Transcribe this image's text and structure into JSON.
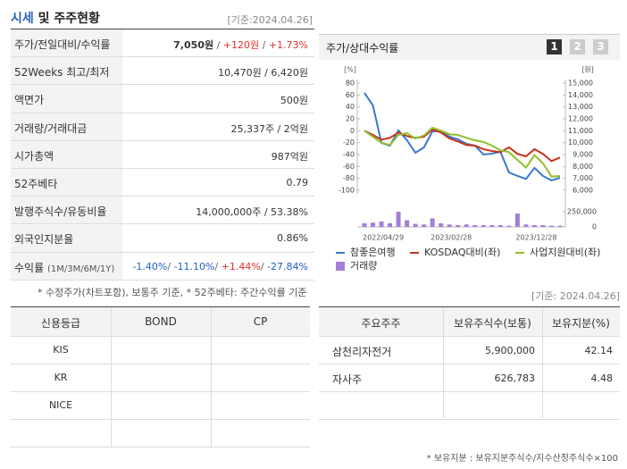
{
  "header": {
    "title_highlight": "시세",
    "title_rest": "및 주주현황",
    "date": "[기준:2024.04.26]"
  },
  "summary": {
    "rows": [
      {
        "label": "주가/전일대비/수익률",
        "value": [
          "7,050원",
          " / ",
          "+120원",
          " / ",
          "+1.73%"
        ]
      },
      {
        "label": "52Weeks 최고/최저",
        "value": [
          "10,470원 / 6,420원"
        ]
      },
      {
        "label": "액면가",
        "value": [
          "500원"
        ]
      },
      {
        "label": "거래량/거래대금",
        "value": [
          "25,337주 / 2억원"
        ]
      },
      {
        "label": "시가총액",
        "value": [
          "987억원"
        ]
      },
      {
        "label": "52주베타",
        "value": [
          "0.79"
        ]
      },
      {
        "label": "발행주식수/유동비율",
        "value": [
          "14,000,000주 / 53.38%"
        ]
      },
      {
        "label": "외국인지분율",
        "value": [
          "0.86%"
        ]
      },
      {
        "label": "수익률",
        "label_note": "(1M/3M/6M/1Y)",
        "value": [
          "-1.40%",
          "/ ",
          "-11.10%",
          "/ ",
          "+1.44%",
          "/ ",
          "-27.84%"
        ]
      }
    ],
    "footnote": "* 수정주가(차트포함), 보통주 기준, * 52주베타: 주간수익률 기준"
  },
  "chart_panel": {
    "tabs": [
      "1",
      "2",
      "3"
    ],
    "date": "[기준: 2024.04.26]"
  },
  "chart_data": {
    "type": "line",
    "title": "주가/상대수익률",
    "y_unit": "[%]",
    "y2_unit": "[원]",
    "categories": [
      null,
      null,
      "2022/04/29",
      null,
      null,
      null,
      null,
      null,
      null,
      null,
      "2023/02/28",
      null,
      null,
      null,
      null,
      null,
      null,
      null,
      null,
      null,
      "2023/12/28",
      null,
      null,
      null
    ],
    "ylim": [
      -100,
      80
    ],
    "yticks": [
      80,
      60,
      40,
      20,
      0,
      -20,
      -40,
      -60,
      -80,
      -100
    ],
    "y2lim": [
      6000,
      15000
    ],
    "y2ticks": [
      {
        "value": 15000,
        "label": "15,000"
      },
      {
        "value": 14000,
        "label": "14,000"
      },
      {
        "value": 13000,
        "label": "13,000"
      },
      {
        "value": 12000,
        "label": "12,000"
      },
      {
        "value": 11000,
        "label": "11,000"
      },
      {
        "value": 10000,
        "label": "10,000"
      },
      {
        "value": 9000,
        "label": "9,000"
      },
      {
        "value": 8000,
        "label": "8,000"
      },
      {
        "value": 7000,
        "label": "7,000"
      },
      {
        "value": 6000,
        "label": "6,000"
      }
    ],
    "volume_ylim": [
      0,
      250000
    ],
    "volume_yticks": [
      {
        "value": 250000,
        "label": "250,000"
      },
      0
    ],
    "series": [
      {
        "name": "참좋은여행",
        "color": "#3a78d0",
        "axis": "y2",
        "values": [
          14180,
          13130,
          9980,
          9750,
          11030,
          10200,
          9150,
          9600,
          10950,
          10950,
          10500,
          10280,
          9900,
          9750,
          9000,
          9080,
          9230,
          7500,
          7200,
          6950,
          7880,
          7200,
          6830,
          7050
        ]
      },
      {
        "name": "KOSDAQ대비(좌)",
        "color": "#c8321e",
        "values": [
          0,
          -7,
          -15,
          -12,
          -3,
          -9,
          -12,
          -10,
          2,
          -3,
          -13,
          -18,
          -24,
          -25,
          -31,
          -34,
          -36,
          -28,
          -39,
          -43,
          -31,
          -39,
          -51,
          -45
        ]
      },
      {
        "name": "사업지원대비(좌)",
        "color": "#8fbf2a",
        "values": [
          0,
          -10,
          -20,
          -24,
          -7,
          -4,
          -13,
          -8,
          5,
          0,
          -6,
          -7,
          -12,
          -16,
          -19,
          -25,
          -33,
          -36,
          -49,
          -62,
          -41,
          -55,
          -77,
          -76
        ]
      },
      {
        "name": "거래량",
        "color": "#a27ed8",
        "type": "bar",
        "axis": "volume",
        "values": [
          60000,
          70000,
          90000,
          60000,
          250000,
          110000,
          50000,
          40000,
          140000,
          60000,
          40000,
          30000,
          40000,
          30000,
          30000,
          30000,
          30000,
          20000,
          220000,
          40000,
          30000,
          30000,
          20000,
          20000
        ]
      }
    ]
  },
  "credit": {
    "header": [
      "신용등급",
      "BOND",
      "CP"
    ],
    "rows": [
      "KIS",
      "KR",
      "NICE"
    ]
  },
  "holders": {
    "header": [
      "주요주주",
      "보유주식수(보통)",
      "보유지분(%)"
    ],
    "rows": [
      [
        "삼천리자전거",
        "5,900,000",
        "42.14"
      ],
      [
        "자사주",
        "626,783",
        "4.48"
      ]
    ],
    "footnote": "* 보유지분 : 보유지분주식수/지수산정주식수×100"
  }
}
